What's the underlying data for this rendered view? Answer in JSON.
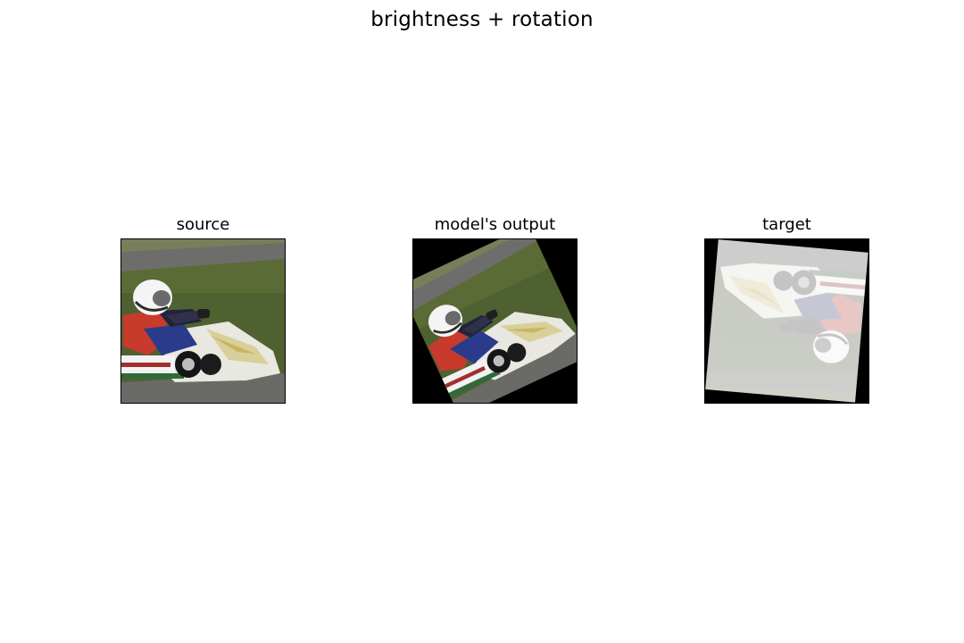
{
  "figure": {
    "title": "brightness + rotation",
    "panels": [
      {
        "title": "source"
      },
      {
        "title": "model's output"
      },
      {
        "title": "target"
      }
    ]
  }
}
